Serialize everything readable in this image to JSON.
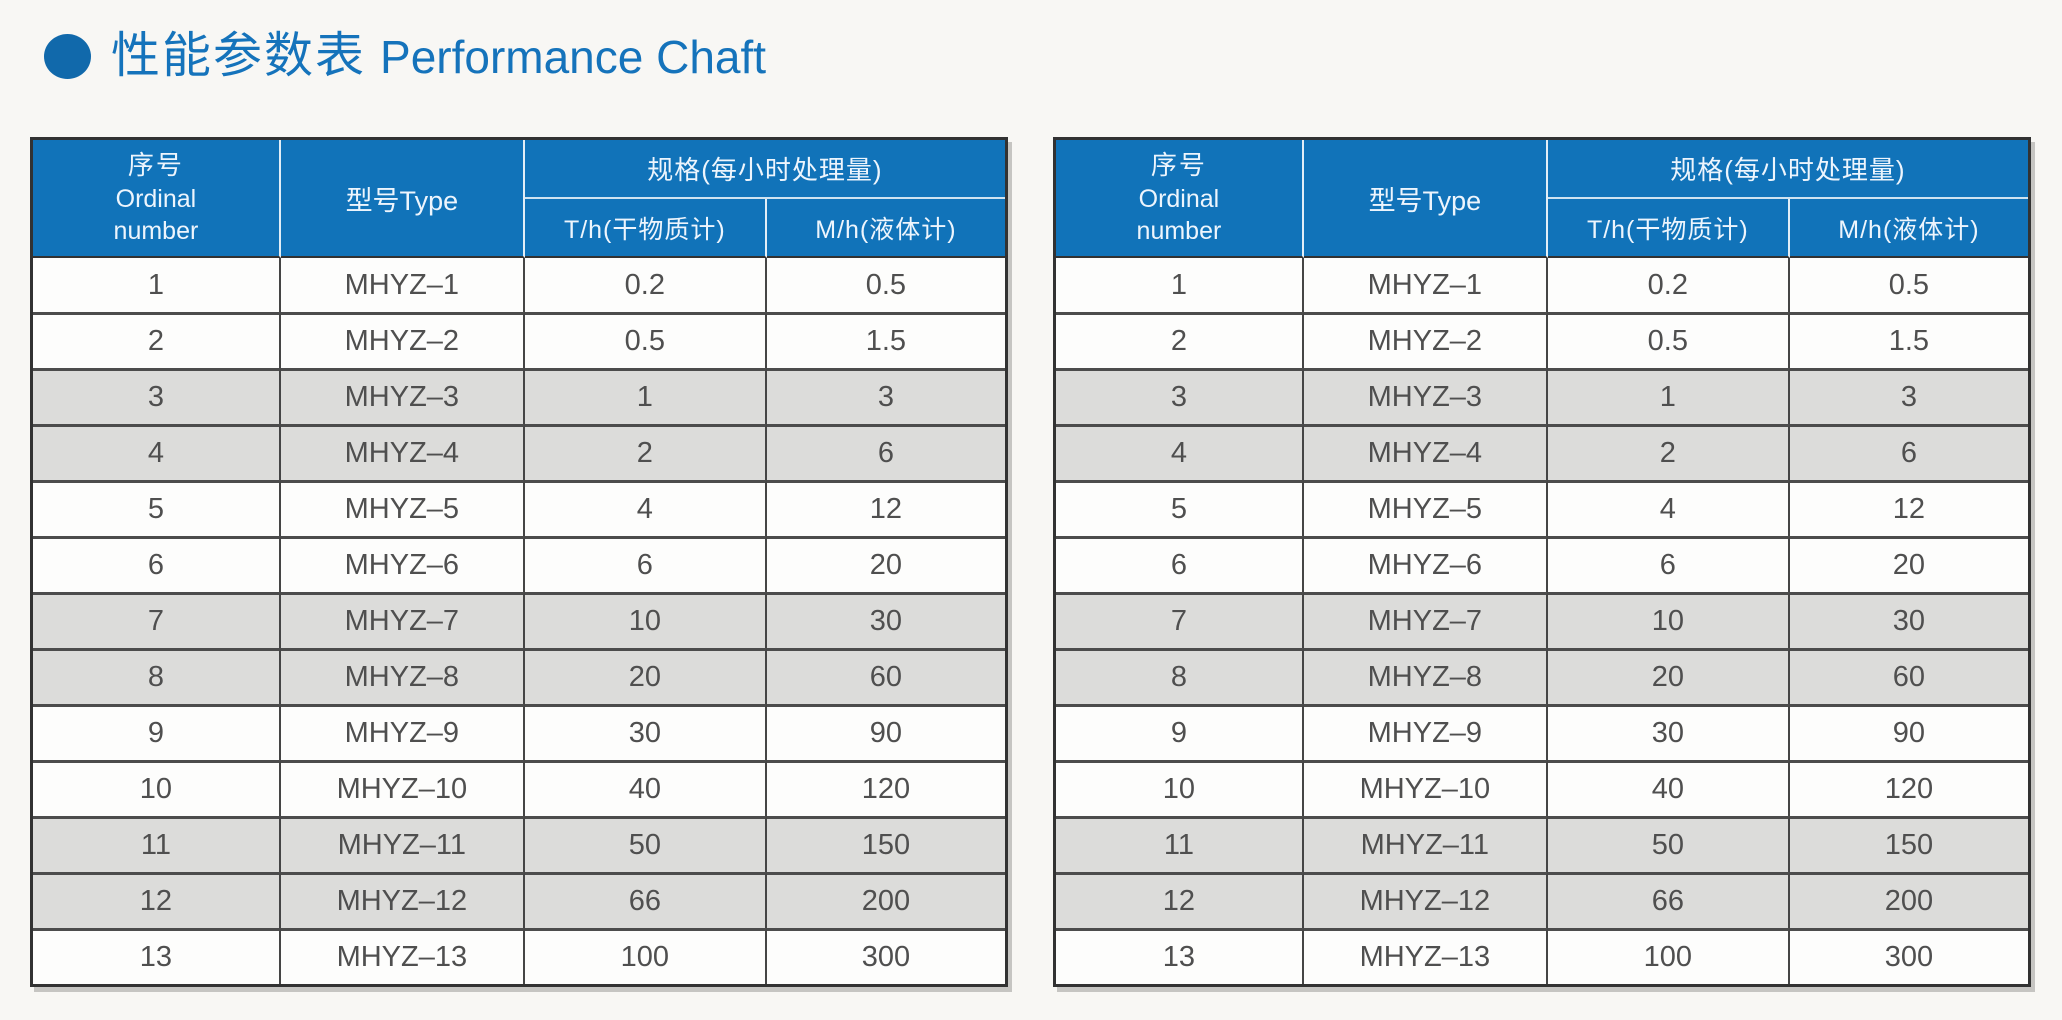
{
  "title": {
    "bullet_icon": "filled-circle",
    "zh": "性能参数表",
    "en": "Performance Chaft"
  },
  "colors": {
    "accent_blue": "#1173b9",
    "title_text": "#1573bb",
    "stripe_gray": "#dcdcda",
    "body_text": "#4f4f4f",
    "border_dark": "#323232"
  },
  "tables": [
    {
      "header": {
        "ordinal_zh": "序号",
        "ordinal_en1": "Ordinal",
        "ordinal_en2": "number",
        "type": "型号Type",
        "spec_group": "规格(每小时处理量)",
        "spec_th": "T/h(干物质计)",
        "spec_mh": "M/h(液体计)"
      },
      "rows": [
        {
          "ordinal": "1",
          "type": "MHYZ–1",
          "th": "0.2",
          "mh": "0.5",
          "shaded": false
        },
        {
          "ordinal": "2",
          "type": "MHYZ–2",
          "th": "0.5",
          "mh": "1.5",
          "shaded": false
        },
        {
          "ordinal": "3",
          "type": "MHYZ–3",
          "th": "1",
          "mh": "3",
          "shaded": true
        },
        {
          "ordinal": "4",
          "type": "MHYZ–4",
          "th": "2",
          "mh": "6",
          "shaded": true
        },
        {
          "ordinal": "5",
          "type": "MHYZ–5",
          "th": "4",
          "mh": "12",
          "shaded": false
        },
        {
          "ordinal": "6",
          "type": "MHYZ–6",
          "th": "6",
          "mh": "20",
          "shaded": false
        },
        {
          "ordinal": "7",
          "type": "MHYZ–7",
          "th": "10",
          "mh": "30",
          "shaded": true
        },
        {
          "ordinal": "8",
          "type": "MHYZ–8",
          "th": "20",
          "mh": "60",
          "shaded": true
        },
        {
          "ordinal": "9",
          "type": "MHYZ–9",
          "th": "30",
          "mh": "90",
          "shaded": false
        },
        {
          "ordinal": "10",
          "type": "MHYZ–10",
          "th": "40",
          "mh": "120",
          "shaded": false
        },
        {
          "ordinal": "11",
          "type": "MHYZ–11",
          "th": "50",
          "mh": "150",
          "shaded": true
        },
        {
          "ordinal": "12",
          "type": "MHYZ–12",
          "th": "66",
          "mh": "200",
          "shaded": true
        },
        {
          "ordinal": "13",
          "type": "MHYZ–13",
          "th": "100",
          "mh": "300",
          "shaded": false
        }
      ]
    },
    {
      "header": {
        "ordinal_zh": "序号",
        "ordinal_en1": "Ordinal",
        "ordinal_en2": "number",
        "type": "型号Type",
        "spec_group": "规格(每小时处理量)",
        "spec_th": "T/h(干物质计)",
        "spec_mh": "M/h(液体计)"
      },
      "rows": [
        {
          "ordinal": "1",
          "type": "MHYZ–1",
          "th": "0.2",
          "mh": "0.5",
          "shaded": false
        },
        {
          "ordinal": "2",
          "type": "MHYZ–2",
          "th": "0.5",
          "mh": "1.5",
          "shaded": false
        },
        {
          "ordinal": "3",
          "type": "MHYZ–3",
          "th": "1",
          "mh": "3",
          "shaded": true
        },
        {
          "ordinal": "4",
          "type": "MHYZ–4",
          "th": "2",
          "mh": "6",
          "shaded": true
        },
        {
          "ordinal": "5",
          "type": "MHYZ–5",
          "th": "4",
          "mh": "12",
          "shaded": false
        },
        {
          "ordinal": "6",
          "type": "MHYZ–6",
          "th": "6",
          "mh": "20",
          "shaded": false
        },
        {
          "ordinal": "7",
          "type": "MHYZ–7",
          "th": "10",
          "mh": "30",
          "shaded": true
        },
        {
          "ordinal": "8",
          "type": "MHYZ–8",
          "th": "20",
          "mh": "60",
          "shaded": true
        },
        {
          "ordinal": "9",
          "type": "MHYZ–9",
          "th": "30",
          "mh": "90",
          "shaded": false
        },
        {
          "ordinal": "10",
          "type": "MHYZ–10",
          "th": "40",
          "mh": "120",
          "shaded": false
        },
        {
          "ordinal": "11",
          "type": "MHYZ–11",
          "th": "50",
          "mh": "150",
          "shaded": true
        },
        {
          "ordinal": "12",
          "type": "MHYZ–12",
          "th": "66",
          "mh": "200",
          "shaded": true
        },
        {
          "ordinal": "13",
          "type": "MHYZ–13",
          "th": "100",
          "mh": "300",
          "shaded": false
        }
      ]
    }
  ]
}
